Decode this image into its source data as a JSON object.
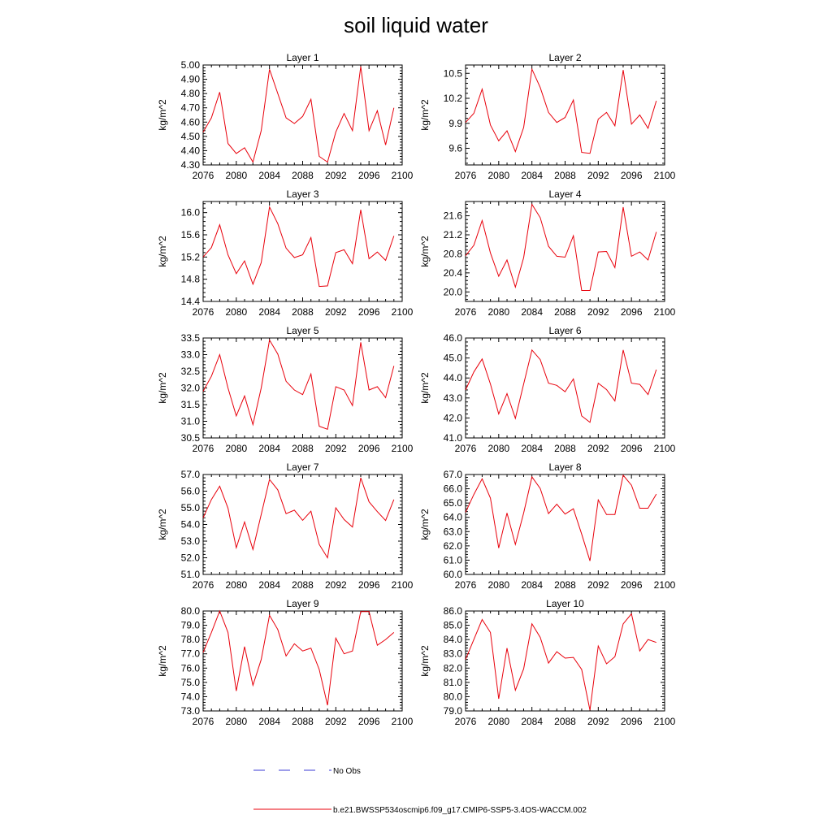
{
  "title": "soil liquid water",
  "legend": {
    "no_obs_label": "No Obs",
    "model_label": "b.e21.BWSSP534oscmip6.f09_g17.CMIP6-SSP5-3.4OS-WACCM.002",
    "no_obs_color": "#3b3bd6",
    "model_color": "#e8000b"
  },
  "chart_data": [
    {
      "type": "line",
      "title": "Layer 1",
      "ylabel": "kg/m^2",
      "x": [
        2076,
        2077,
        2078,
        2079,
        2080,
        2081,
        2082,
        2083,
        2084,
        2085,
        2086,
        2087,
        2088,
        2089,
        2090,
        2091,
        2092,
        2093,
        2094,
        2095,
        2096,
        2097,
        2098,
        2099
      ],
      "xlim": [
        2076,
        2100
      ],
      "xticks": [
        "2076",
        "2080",
        "2084",
        "2088",
        "2092",
        "2096",
        "2100"
      ],
      "ylim": [
        4.3,
        5.0
      ],
      "yticks": [
        "4.30",
        "4.40",
        "4.50",
        "4.60",
        "4.70",
        "4.80",
        "4.90",
        "5.00"
      ],
      "series": [
        {
          "values": [
            4.53,
            4.63,
            4.81,
            4.45,
            4.38,
            4.42,
            4.32,
            4.54,
            4.97,
            4.8,
            4.63,
            4.59,
            4.64,
            4.76,
            4.36,
            4.32,
            4.53,
            4.66,
            4.54,
            4.99,
            4.54,
            4.68,
            4.44,
            4.7
          ]
        }
      ]
    },
    {
      "type": "line",
      "title": "Layer 2",
      "ylabel": "kg/m^2",
      "x": [
        2076,
        2077,
        2078,
        2079,
        2080,
        2081,
        2082,
        2083,
        2084,
        2085,
        2086,
        2087,
        2088,
        2089,
        2090,
        2091,
        2092,
        2093,
        2094,
        2095,
        2096,
        2097,
        2098,
        2099
      ],
      "xlim": [
        2076,
        2100
      ],
      "xticks": [
        "2076",
        "2080",
        "2084",
        "2088",
        "2092",
        "2096",
        "2100"
      ],
      "ylim": [
        9.4,
        10.6
      ],
      "yticks": [
        "9.6",
        "9.9",
        "10.2",
        "10.5"
      ],
      "series": [
        {
          "values": [
            9.91,
            10.02,
            10.31,
            9.88,
            9.69,
            9.81,
            9.56,
            9.85,
            10.55,
            10.33,
            10.03,
            9.91,
            9.97,
            10.18,
            9.55,
            9.54,
            9.95,
            10.03,
            9.87,
            10.54,
            9.89,
            10.0,
            9.84,
            10.17
          ]
        }
      ]
    },
    {
      "type": "line",
      "title": "Layer 3",
      "ylabel": "kg/m^2",
      "x": [
        2076,
        2077,
        2078,
        2079,
        2080,
        2081,
        2082,
        2083,
        2084,
        2085,
        2086,
        2087,
        2088,
        2089,
        2090,
        2091,
        2092,
        2093,
        2094,
        2095,
        2096,
        2097,
        2098,
        2099
      ],
      "xlim": [
        2076,
        2100
      ],
      "xticks": [
        "2076",
        "2080",
        "2084",
        "2088",
        "2092",
        "2096",
        "2100"
      ],
      "ylim": [
        14.4,
        16.2
      ],
      "yticks": [
        "14.4",
        "14.8",
        "15.2",
        "15.6",
        "16.0"
      ],
      "series": [
        {
          "values": [
            15.2,
            15.37,
            15.78,
            15.24,
            14.9,
            15.13,
            14.71,
            15.1,
            16.1,
            15.8,
            15.36,
            15.19,
            15.24,
            15.55,
            14.67,
            14.68,
            15.28,
            15.33,
            15.08,
            16.05,
            15.17,
            15.29,
            15.14,
            15.58
          ]
        }
      ]
    },
    {
      "type": "line",
      "title": "Layer 4",
      "ylabel": "kg/m^2",
      "x": [
        2076,
        2077,
        2078,
        2079,
        2080,
        2081,
        2082,
        2083,
        2084,
        2085,
        2086,
        2087,
        2088,
        2089,
        2090,
        2091,
        2092,
        2093,
        2094,
        2095,
        2096,
        2097,
        2098,
        2099
      ],
      "xlim": [
        2076,
        2100
      ],
      "xticks": [
        "2076",
        "2080",
        "2084",
        "2088",
        "2092",
        "2096",
        "2100"
      ],
      "ylim": [
        19.8,
        21.9
      ],
      "yticks": [
        "20.0",
        "20.4",
        "20.8",
        "21.2",
        "21.6"
      ],
      "series": [
        {
          "values": [
            20.76,
            20.98,
            21.5,
            20.82,
            20.33,
            20.67,
            20.1,
            20.72,
            21.84,
            21.56,
            20.96,
            20.75,
            20.73,
            21.18,
            20.03,
            20.03,
            20.84,
            20.85,
            20.51,
            21.78,
            20.75,
            20.84,
            20.67,
            21.26
          ]
        }
      ]
    },
    {
      "type": "line",
      "title": "Layer 5",
      "ylabel": "kg/m^2",
      "x": [
        2076,
        2077,
        2078,
        2079,
        2080,
        2081,
        2082,
        2083,
        2084,
        2085,
        2086,
        2087,
        2088,
        2089,
        2090,
        2091,
        2092,
        2093,
        2094,
        2095,
        2096,
        2097,
        2098,
        2099
      ],
      "xlim": [
        2076,
        2100
      ],
      "xticks": [
        "2076",
        "2080",
        "2084",
        "2088",
        "2092",
        "2096",
        "2100"
      ],
      "ylim": [
        30.5,
        33.5
      ],
      "yticks": [
        "30.5",
        "31.0",
        "31.5",
        "32.0",
        "32.5",
        "33.0",
        "33.5"
      ],
      "series": [
        {
          "values": [
            31.9,
            32.35,
            33.0,
            32.0,
            31.16,
            31.76,
            30.9,
            32.0,
            33.44,
            33.02,
            32.2,
            31.94,
            31.8,
            32.42,
            30.85,
            30.76,
            32.04,
            31.94,
            31.47,
            33.37,
            31.94,
            32.04,
            31.71,
            32.66
          ]
        }
      ]
    },
    {
      "type": "line",
      "title": "Layer 6",
      "ylabel": "kg/m^2",
      "x": [
        2076,
        2077,
        2078,
        2079,
        2080,
        2081,
        2082,
        2083,
        2084,
        2085,
        2086,
        2087,
        2088,
        2089,
        2090,
        2091,
        2092,
        2093,
        2094,
        2095,
        2096,
        2097,
        2098,
        2099
      ],
      "xlim": [
        2076,
        2100
      ],
      "xticks": [
        "2076",
        "2080",
        "2084",
        "2088",
        "2092",
        "2096",
        "2100"
      ],
      "ylim": [
        41.0,
        46.0
      ],
      "yticks": [
        "41.0",
        "42.0",
        "43.0",
        "44.0",
        "45.0",
        "46.0"
      ],
      "series": [
        {
          "values": [
            43.4,
            44.3,
            44.95,
            43.7,
            42.2,
            43.22,
            41.98,
            43.7,
            45.4,
            44.92,
            43.74,
            43.63,
            43.31,
            43.95,
            42.1,
            41.78,
            43.74,
            43.42,
            42.85,
            45.4,
            43.74,
            43.68,
            43.17,
            44.42
          ]
        }
      ]
    },
    {
      "type": "line",
      "title": "Layer 7",
      "ylabel": "kg/m^2",
      "x": [
        2076,
        2077,
        2078,
        2079,
        2080,
        2081,
        2082,
        2083,
        2084,
        2085,
        2086,
        2087,
        2088,
        2089,
        2090,
        2091,
        2092,
        2093,
        2094,
        2095,
        2096,
        2097,
        2098,
        2099
      ],
      "xlim": [
        2076,
        2100
      ],
      "xticks": [
        "2076",
        "2080",
        "2084",
        "2088",
        "2092",
        "2096",
        "2100"
      ],
      "ylim": [
        51.0,
        57.0
      ],
      "yticks": [
        "51.0",
        "52.0",
        "53.0",
        "54.0",
        "55.0",
        "56.0",
        "57.0"
      ],
      "series": [
        {
          "values": [
            54.4,
            55.5,
            56.3,
            54.98,
            52.6,
            54.15,
            52.5,
            54.6,
            56.7,
            56.08,
            54.65,
            54.86,
            54.25,
            54.8,
            52.8,
            52.0,
            55.0,
            54.3,
            53.85,
            56.8,
            55.36,
            54.77,
            54.24,
            55.5
          ]
        }
      ]
    },
    {
      "type": "line",
      "title": "Layer 8",
      "ylabel": "kg/m^2",
      "x": [
        2076,
        2077,
        2078,
        2079,
        2080,
        2081,
        2082,
        2083,
        2084,
        2085,
        2086,
        2087,
        2088,
        2089,
        2090,
        2091,
        2092,
        2093,
        2094,
        2095,
        2096,
        2097,
        2098,
        2099
      ],
      "xlim": [
        2076,
        2100
      ],
      "xticks": [
        "2076",
        "2080",
        "2084",
        "2088",
        "2092",
        "2096",
        "2100"
      ],
      "ylim": [
        60.0,
        67.0
      ],
      "yticks": [
        "60.0",
        "61.0",
        "62.0",
        "63.0",
        "64.0",
        "65.0",
        "66.0",
        "67.0"
      ],
      "series": [
        {
          "values": [
            64.35,
            65.6,
            66.7,
            65.35,
            61.85,
            64.3,
            62.1,
            64.3,
            66.83,
            66.02,
            64.26,
            64.92,
            64.23,
            64.6,
            62.83,
            60.95,
            65.22,
            64.2,
            64.2,
            66.95,
            66.25,
            64.64,
            64.64,
            65.63
          ]
        }
      ]
    },
    {
      "type": "line",
      "title": "Layer 9",
      "ylabel": "kg/m^2",
      "x": [
        2076,
        2077,
        2078,
        2079,
        2080,
        2081,
        2082,
        2083,
        2084,
        2085,
        2086,
        2087,
        2088,
        2089,
        2090,
        2091,
        2092,
        2093,
        2094,
        2095,
        2096,
        2097,
        2098,
        2099
      ],
      "xlim": [
        2076,
        2100
      ],
      "xticks": [
        "2076",
        "2080",
        "2084",
        "2088",
        "2092",
        "2096",
        "2100"
      ],
      "ylim": [
        73.0,
        80.0
      ],
      "yticks": [
        "73.0",
        "74.0",
        "75.0",
        "76.0",
        "77.0",
        "78.0",
        "79.0",
        "80.0"
      ],
      "series": [
        {
          "values": [
            77.1,
            78.5,
            80.0,
            78.5,
            74.4,
            77.5,
            74.8,
            76.6,
            79.7,
            78.7,
            76.85,
            77.7,
            77.2,
            77.4,
            75.9,
            73.4,
            78.1,
            77.0,
            77.2,
            79.96,
            79.96,
            77.6,
            78.0,
            78.5
          ]
        }
      ]
    },
    {
      "type": "line",
      "title": "Layer 10",
      "ylabel": "kg/m^2",
      "x": [
        2076,
        2077,
        2078,
        2079,
        2080,
        2081,
        2082,
        2083,
        2084,
        2085,
        2086,
        2087,
        2088,
        2089,
        2090,
        2091,
        2092,
        2093,
        2094,
        2095,
        2096,
        2097,
        2098,
        2099
      ],
      "xlim": [
        2076,
        2100
      ],
      "xticks": [
        "2076",
        "2080",
        "2084",
        "2088",
        "2092",
        "2096",
        "2100"
      ],
      "ylim": [
        79.0,
        86.0
      ],
      "yticks": [
        "79.0",
        "80.0",
        "81.0",
        "82.0",
        "83.0",
        "84.0",
        "85.0",
        "86.0"
      ],
      "series": [
        {
          "values": [
            82.6,
            84.0,
            85.4,
            84.5,
            79.85,
            83.4,
            80.45,
            81.95,
            85.1,
            84.15,
            82.35,
            83.15,
            82.7,
            82.75,
            81.9,
            79.05,
            83.55,
            82.3,
            82.8,
            85.1,
            85.8,
            83.2,
            84.0,
            83.8
          ]
        }
      ]
    }
  ]
}
